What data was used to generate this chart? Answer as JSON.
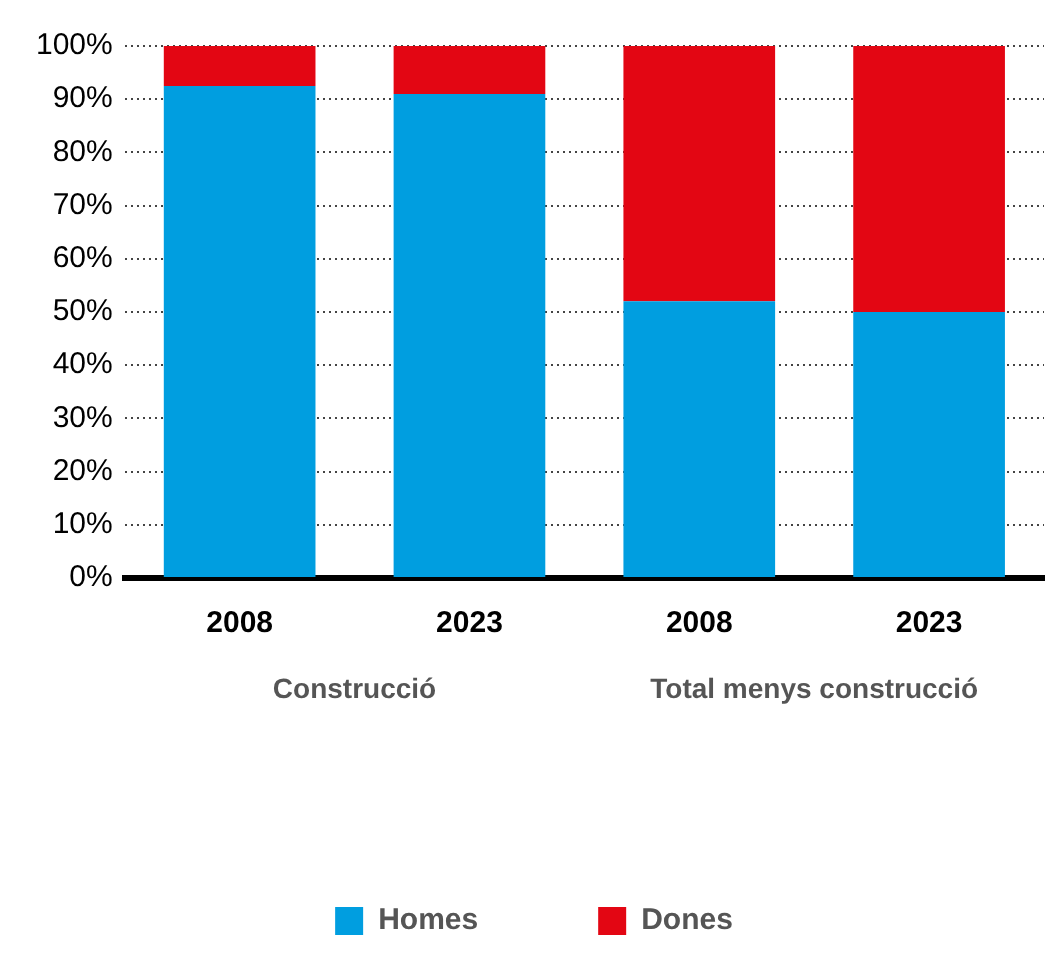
{
  "chart_data": {
    "type": "bar",
    "stacked": true,
    "categories": [
      "2008",
      "2023",
      "2008",
      "2023"
    ],
    "series": [
      {
        "name": "Homes",
        "color": "#009ee0",
        "values": [
          92.5,
          91,
          52,
          50
        ]
      },
      {
        "name": "Dones",
        "color": "#e30613",
        "values": [
          7.5,
          9,
          48,
          50
        ]
      }
    ],
    "ylim": [
      0,
      100
    ],
    "yticks": [
      {
        "value": 0,
        "label": "0%"
      },
      {
        "value": 10,
        "label": "10%"
      },
      {
        "value": 20,
        "label": "20%"
      },
      {
        "value": 30,
        "label": "30%"
      },
      {
        "value": 40,
        "label": "40%"
      },
      {
        "value": 50,
        "label": "50%"
      },
      {
        "value": 60,
        "label": "60%"
      },
      {
        "value": 70,
        "label": "70%"
      },
      {
        "value": 80,
        "label": "80%"
      },
      {
        "value": 90,
        "label": "90%"
      },
      {
        "value": 100,
        "label": "100%"
      }
    ],
    "annotations": [
      "Construcció",
      "Total menys construcció"
    ],
    "grid": "y",
    "legend": "bottom"
  }
}
